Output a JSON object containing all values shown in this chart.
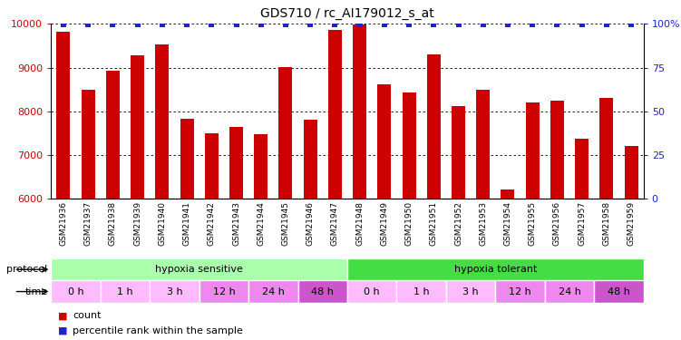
{
  "title": "GDS710 / rc_AI179012_s_at",
  "samples": [
    "GSM21936",
    "GSM21937",
    "GSM21938",
    "GSM21939",
    "GSM21940",
    "GSM21941",
    "GSM21942",
    "GSM21943",
    "GSM21944",
    "GSM21945",
    "GSM21946",
    "GSM21947",
    "GSM21948",
    "GSM21949",
    "GSM21950",
    "GSM21951",
    "GSM21952",
    "GSM21953",
    "GSM21954",
    "GSM21955",
    "GSM21956",
    "GSM21957",
    "GSM21958",
    "GSM21959"
  ],
  "counts": [
    9820,
    8500,
    8920,
    9280,
    9520,
    7830,
    7500,
    7650,
    7480,
    9020,
    7800,
    9850,
    9980,
    8620,
    8440,
    9300,
    8130,
    8490,
    6220,
    8200,
    8250,
    7380,
    8300,
    7200
  ],
  "bar_color": "#cc0000",
  "percentile_color": "#2222cc",
  "ylim_left": [
    6000,
    10000
  ],
  "ylim_right": [
    0,
    100
  ],
  "yticks_left": [
    6000,
    7000,
    8000,
    9000,
    10000
  ],
  "yticks_right": [
    0,
    25,
    50,
    75,
    100
  ],
  "ytick_labels_right": [
    "0",
    "25",
    "50",
    "75",
    "100%"
  ],
  "protocol_groups": [
    {
      "label": "hypoxia sensitive",
      "start": 0,
      "end": 12,
      "color": "#aaffaa"
    },
    {
      "label": "hypoxia tolerant",
      "start": 12,
      "end": 24,
      "color": "#44dd44"
    }
  ],
  "time_groups": [
    {
      "label": "0 h",
      "start": 0,
      "end": 2,
      "color": "#ffbbff"
    },
    {
      "label": "1 h",
      "start": 2,
      "end": 4,
      "color": "#ffbbff"
    },
    {
      "label": "3 h",
      "start": 4,
      "end": 6,
      "color": "#ffbbff"
    },
    {
      "label": "12 h",
      "start": 6,
      "end": 8,
      "color": "#ee88ee"
    },
    {
      "label": "24 h",
      "start": 8,
      "end": 10,
      "color": "#ee88ee"
    },
    {
      "label": "48 h",
      "start": 10,
      "end": 12,
      "color": "#cc55cc"
    },
    {
      "label": "0 h",
      "start": 12,
      "end": 14,
      "color": "#ffbbff"
    },
    {
      "label": "1 h",
      "start": 14,
      "end": 16,
      "color": "#ffbbff"
    },
    {
      "label": "3 h",
      "start": 16,
      "end": 18,
      "color": "#ffbbff"
    },
    {
      "label": "12 h",
      "start": 18,
      "end": 20,
      "color": "#ee88ee"
    },
    {
      "label": "24 h",
      "start": 20,
      "end": 22,
      "color": "#ee88ee"
    },
    {
      "label": "48 h",
      "start": 22,
      "end": 24,
      "color": "#cc55cc"
    }
  ],
  "background_color": "#ffffff",
  "n_samples": 24
}
